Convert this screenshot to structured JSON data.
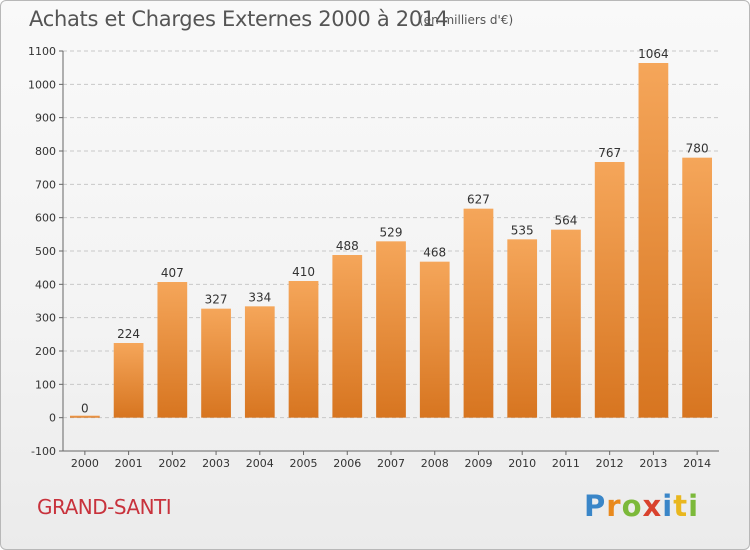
{
  "title": "Achats et Charges Externes 2000 à 2014",
  "unit_note": "(en milliers d'€)",
  "town": "GRAND-SANTI",
  "logo": [
    "P",
    "r",
    "o",
    "x",
    "i",
    "t",
    "i"
  ],
  "colors": {
    "bar_top": "#f5a65a",
    "bar_bottom": "#d77520",
    "grid": "#c8c8c8",
    "town": "#c8323c"
  },
  "chart_data": {
    "type": "bar",
    "title": "Achats et Charges Externes 2000 à 2014",
    "subtitle": "(en milliers d'€)",
    "categories": [
      "2000",
      "2001",
      "2002",
      "2003",
      "2004",
      "2005",
      "2006",
      "2007",
      "2008",
      "2009",
      "2010",
      "2011",
      "2012",
      "2013",
      "2014"
    ],
    "values": [
      0,
      224,
      407,
      327,
      334,
      410,
      488,
      529,
      468,
      627,
      535,
      564,
      767,
      1064,
      780
    ],
    "ylim": [
      -100,
      1100
    ],
    "yticks": [
      -100,
      0,
      100,
      200,
      300,
      400,
      500,
      600,
      700,
      800,
      900,
      1000,
      1100
    ],
    "grid": true,
    "legend": "none"
  }
}
